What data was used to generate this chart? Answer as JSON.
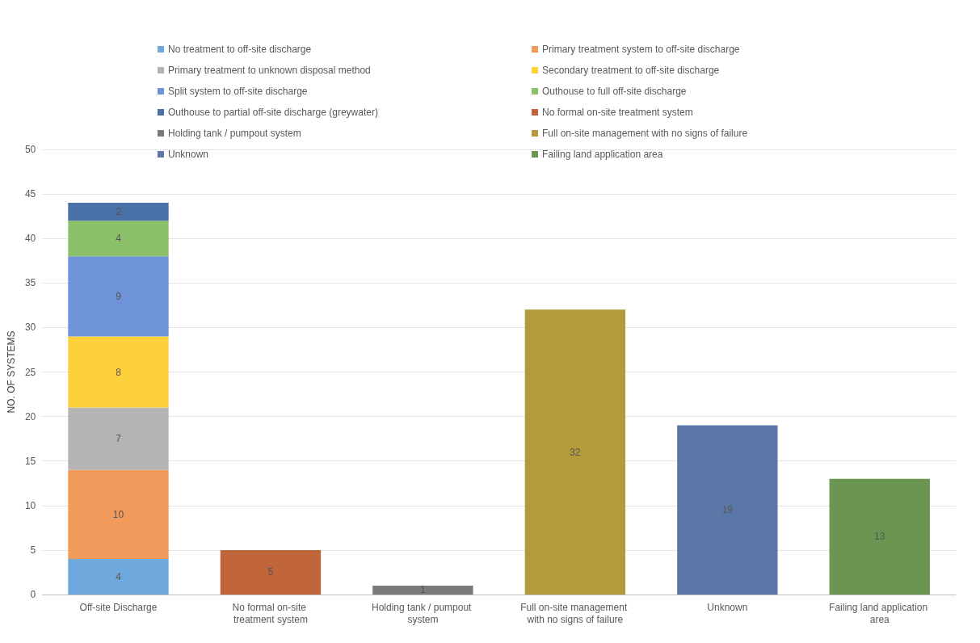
{
  "chart_data": {
    "type": "bar",
    "stacked": true,
    "ylabel": "NO. OF SYSTEMS",
    "categories": [
      "Off-site Discharge",
      "No formal on-site treatment system",
      "Holding tank / pumpout system",
      "Full on-site management with no signs of failure",
      "Unknown",
      "Failing land application area"
    ],
    "series": [
      {
        "name": "No treatment to off-site discharge",
        "color": "#6fa8dc",
        "values": [
          4,
          null,
          null,
          null,
          null,
          null
        ]
      },
      {
        "name": "Primary treatment system to off-site discharge",
        "color": "#f09a5c",
        "values": [
          10,
          null,
          null,
          null,
          null,
          null
        ]
      },
      {
        "name": "Primary treatment to unknown disposal method",
        "color": "#b4b4b4",
        "values": [
          7,
          null,
          null,
          null,
          null,
          null
        ]
      },
      {
        "name": "Secondary treatment to off-site discharge",
        "color": "#fdd13a",
        "values": [
          8,
          null,
          null,
          null,
          null,
          null
        ]
      },
      {
        "name": "Split system to off-site discharge",
        "color": "#6f93d8",
        "values": [
          9,
          null,
          null,
          null,
          null,
          null
        ]
      },
      {
        "name": "Outhouse to full off-site discharge",
        "color": "#8cc06a",
        "values": [
          4,
          null,
          null,
          null,
          null,
          null
        ]
      },
      {
        "name": "Outhouse to partial off-site discharge (greywater)",
        "color": "#4a70a8",
        "values": [
          2,
          null,
          null,
          null,
          null,
          null
        ]
      },
      {
        "name": "No formal on-site treatment system",
        "color": "#c0663a",
        "values": [
          null,
          5,
          null,
          null,
          null,
          null
        ]
      },
      {
        "name": "Holding tank / pumpout system",
        "color": "#7a7a7a",
        "values": [
          null,
          null,
          1,
          null,
          null,
          null
        ]
      },
      {
        "name": "Full on-site management with no signs of failure",
        "color": "#b59a3c",
        "values": [
          null,
          null,
          null,
          32,
          null,
          null
        ]
      },
      {
        "name": "Unknown",
        "color": "#5b77a8",
        "values": [
          null,
          null,
          null,
          null,
          19,
          null
        ]
      },
      {
        "name": "Failing land application area",
        "color": "#6a9652",
        "values": [
          null,
          null,
          null,
          null,
          null,
          13
        ]
      }
    ],
    "ylim": [
      0,
      50
    ],
    "yticks": [
      0,
      5,
      10,
      15,
      20,
      25,
      30,
      35,
      40,
      45,
      50
    ],
    "grid": "y",
    "legend": "top",
    "data_labels": true
  }
}
